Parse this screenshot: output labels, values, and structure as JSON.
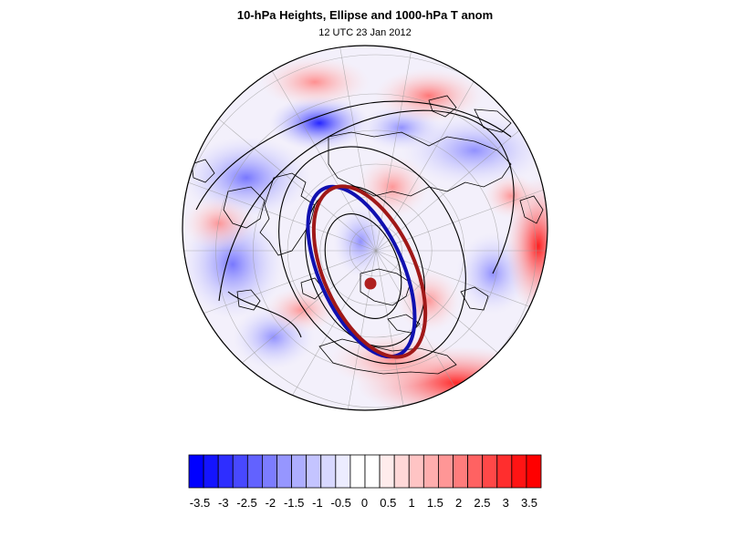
{
  "figure": {
    "title": "10-hPa Heights, Ellipse and 1000-hPa T anom",
    "subtitle": "12 UTC 23 Jan 2012"
  },
  "map": {
    "projection": "orthographic-north-polar",
    "layers": [
      "1000-hPa temperature anomaly shading",
      "10-hPa height contours",
      "coastlines",
      "graticule",
      "vortex ellipse (blue)",
      "vortex ellipse (red)",
      "ellipse centroid"
    ],
    "colors": {
      "ellipse_blue": "#1010b0",
      "ellipse_red": "#a01818",
      "centroid": "#b02020",
      "contours": "#000000",
      "coast": "#000000"
    }
  },
  "colorbar": {
    "tick_labels": [
      "-3.5",
      "-3",
      "-2.5",
      "-2",
      "-1.5",
      "-1",
      "-0.5",
      "0",
      "0.5",
      "1",
      "1.5",
      "2",
      "2.5",
      "3",
      "3.5"
    ],
    "colors": [
      "#0000ff",
      "#1414ff",
      "#2e2eff",
      "#4848ff",
      "#6262ff",
      "#7c7cff",
      "#9696ff",
      "#aeaeff",
      "#c4c4ff",
      "#d8d8ff",
      "#ececff",
      "#ffffff",
      "#ffffff",
      "#ffecec",
      "#ffd8d8",
      "#ffc4c4",
      "#ffaeae",
      "#ff9696",
      "#ff7c7c",
      "#ff6262",
      "#ff4848",
      "#ff2e2e",
      "#ff1414",
      "#ff0000"
    ]
  }
}
